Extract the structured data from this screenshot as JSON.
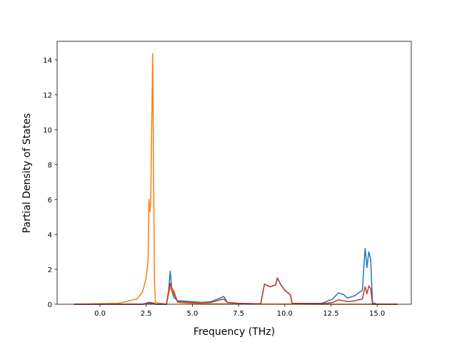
{
  "chart_data": {
    "type": "line",
    "xlabel": "Frequency (THz)",
    "ylabel": "Partial Density of States",
    "x": [
      -1.4,
      1.0,
      2.0,
      2.3,
      2.5,
      2.6,
      2.65,
      2.7,
      2.75,
      2.85,
      2.95,
      3.0,
      3.6,
      3.7,
      3.8,
      3.9,
      4.0,
      4.2,
      5.0,
      5.5,
      6.0,
      6.5,
      6.7,
      6.9,
      7.5,
      8.7,
      8.9,
      9.2,
      9.5,
      9.6,
      9.8,
      10.0,
      10.3,
      10.4,
      12.0,
      12.6,
      12.9,
      13.2,
      13.4,
      13.8,
      14.2,
      14.35,
      14.45,
      14.55,
      14.65,
      14.75,
      15.0,
      16.1
    ],
    "series": [
      {
        "color": "#1f77b4",
        "values": [
          0,
          0,
          0,
          0,
          0.02,
          0.05,
          0.05,
          0.05,
          0.05,
          0.05,
          0.02,
          0,
          0,
          0.6,
          1.9,
          0.7,
          0.4,
          0.2,
          0.15,
          0.1,
          0.15,
          0.35,
          0.45,
          0.1,
          0.05,
          0.02,
          1.15,
          1.0,
          1.1,
          1.5,
          1.1,
          0.8,
          0.55,
          0.05,
          0.05,
          0.3,
          0.65,
          0.55,
          0.35,
          0.5,
          0.8,
          3.2,
          2.1,
          3.0,
          2.6,
          0.1,
          0,
          0
        ]
      },
      {
        "color": "#ff7f0e",
        "values": [
          0,
          0.05,
          0.3,
          0.7,
          1.5,
          2.5,
          6.0,
          5.3,
          6.0,
          14.35,
          1.3,
          0.1,
          0,
          0.5,
          1.0,
          0.7,
          0.8,
          0.1,
          0.05,
          0.02,
          0.02,
          0.02,
          0.02,
          0.02,
          0.02,
          0.01,
          0.01,
          0.01,
          0.01,
          0.01,
          0.01,
          0.01,
          0.01,
          0.01,
          0,
          0,
          0,
          0,
          0,
          0,
          0,
          0,
          0,
          0,
          0,
          0,
          0,
          0
        ]
      },
      {
        "color": "#c0392b",
        "values": [
          0,
          0,
          0,
          0,
          0.05,
          0.1,
          0.1,
          0.1,
          0.1,
          0.08,
          0.05,
          0,
          0,
          0.7,
          1.2,
          0.9,
          0.6,
          0.15,
          0.1,
          0.08,
          0.1,
          0.25,
          0.3,
          0.1,
          0.05,
          0.02,
          1.15,
          1.0,
          1.1,
          1.5,
          1.1,
          0.8,
          0.55,
          0.05,
          0.02,
          0.1,
          0.25,
          0.2,
          0.15,
          0.2,
          0.3,
          1.0,
          0.6,
          1.05,
          0.9,
          0,
          0,
          0
        ]
      }
    ],
    "xlim": [
      -2.32,
      16.85
    ],
    "ylim": [
      0,
      15.06
    ],
    "xticks": [
      {
        "value": 0,
        "label": "0.0"
      },
      2.5,
      {
        "value": 5,
        "label": "5.0"
      },
      7.5,
      {
        "value": 10,
        "label": "10.0"
      },
      12.5,
      {
        "value": 15,
        "label": "15.0"
      }
    ],
    "yticks": [
      0,
      2,
      4,
      6,
      8,
      10,
      12,
      14
    ]
  }
}
